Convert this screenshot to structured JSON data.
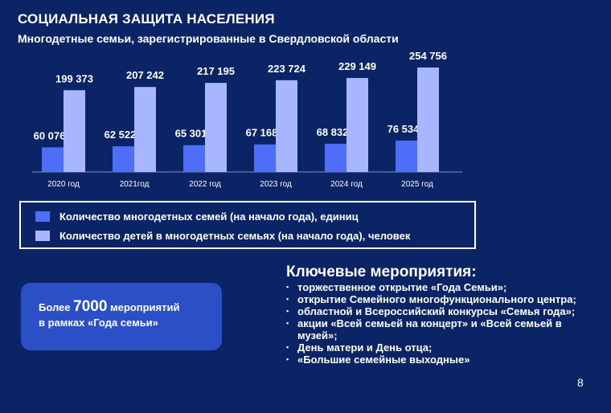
{
  "slide": {
    "title": "СОЦИАЛЬНАЯ ЗАЩИТА НАСЕЛЕНИЯ",
    "subtitle": "Многодетные семьи, зарегистрированные в Свердловской области",
    "page_number": "8"
  },
  "colors": {
    "background": "#0b2466",
    "families_bar": "#4f6ef7",
    "children_bar": "#a7b6ff",
    "highlight_box": "#2a4fc7"
  },
  "chart_data": {
    "type": "bar",
    "categories": [
      "2020 год",
      "2021год",
      "2022 год",
      "2023 год",
      "2024 год",
      "2025 год"
    ],
    "series": [
      {
        "name": "Количество многодетных семей (на начало года), единиц",
        "values": [
          60076,
          62522,
          65301,
          67168,
          68832,
          76534
        ],
        "labels": [
          "60 076",
          "62 522",
          "65 301",
          "67 168",
          "68 832",
          "76 534"
        ]
      },
      {
        "name": "Количество детей в многодетных семьях (на начало года), человек",
        "values": [
          199373,
          207242,
          217195,
          223724,
          229149,
          254756
        ],
        "labels": [
          "199 373",
          "207 242",
          "217 195",
          "223 724",
          "229 149",
          "254 756"
        ]
      }
    ],
    "legend": "bottom"
  },
  "legend": {
    "families": "Количество многодетных семей (на начало года), единиц",
    "children": "Количество детей в многодетных семьях (на начало года), человек"
  },
  "highlight": {
    "prefix": "Более ",
    "number": "7000",
    "suffix": " мероприятий",
    "line2": "в рамках «Года семьи»"
  },
  "events": {
    "title": "Ключевые мероприятия:",
    "items": [
      "торжественное открытие «Года Семьи»;",
      "открытие Семейного многофункционального центра;",
      "областной и Всероссийский конкурсы «Семья года»;",
      "акции «Всей семьей на концерт» и «Всей семьей в музей»;",
      "День матери и  День отца;",
      "«Большие семейные выходные»"
    ]
  }
}
